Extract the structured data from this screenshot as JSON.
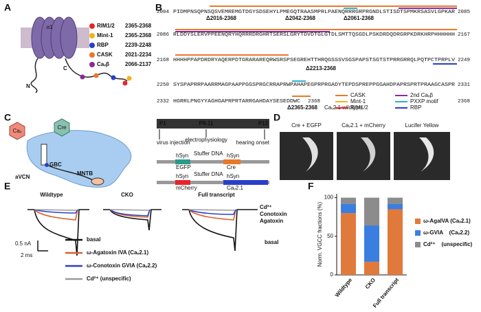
{
  "figure": {
    "A": {
      "label": "A",
      "alpha": "α1",
      "n": "N",
      "c": "C",
      "legend": [
        {
          "name": "RIM1/2",
          "range": "2365-2368",
          "color": "#e8242a"
        },
        {
          "name": "Mint-1",
          "range": "2365-2368",
          "color": "#f2b21c"
        },
        {
          "name": "RBP",
          "range": "2239-2248",
          "color": "#2a3fc8"
        },
        {
          "name": "CASK",
          "range": "2021-2234",
          "color": "#e8792a"
        },
        {
          "name": "Caᵥβ",
          "range": "2066-2137",
          "color": "#8a2a9a"
        }
      ]
    },
    "B": {
      "label": "B",
      "rows": [
        {
          "start": "2004",
          "seq": "PIDMPNSQPNSQSVEMREMGTDGYSDSEHYLPMEGQTRAASMPRLPAENQRRRGRPRGNDLSTISDTSPMKRSASVLGPKAR",
          "end": "2085"
        },
        {
          "start": "2086",
          "seq": "RLDDYSLERVPPEENQRYHQRRRDRGHRTSERSLGRYTDVDTGLGTDLSMTTQSGDLPSKDRDQDRGRPKDRKHRPHHHHHH",
          "end": "2167"
        },
        {
          "start": "2168",
          "seq": "HHHHPPAPDRDRYAQERPDTGRARAREQRWSRSPSEGREHTTHRQGSSSVSGSPAPSTSGTSTPRRGRRQLPQTPCTPRPLV",
          "end": "2249"
        },
        {
          "start": "2250",
          "seq": "SYSPAPRRPAARRMAGPAAPPGGSPRGCRRAPRWPAHAPEGPRPRGADYTEPDSPREPPGGAHDPAPRSPRTPRAAGCASPR",
          "end": "2331"
        },
        {
          "start": "2332",
          "seq": "HGRRLPNGYYAGHGAPRPRTARRGAHDAYSESEDDWC",
          "end": "2368"
        }
      ],
      "deletions": [
        "Δ2016-2368",
        "Δ2042-2368",
        "Δ2061-2368",
        "Δ2213-2368",
        "Δ2365-2368"
      ],
      "wt_end": "2368",
      "wildtype": "Caᵥ2.1 wildtype",
      "legend": [
        {
          "name": "CASK",
          "color": "#e8792a"
        },
        {
          "name": "Mint-1",
          "color": "#f2b21c"
        },
        {
          "name": "RIM1/2",
          "color": "#e8242a"
        },
        {
          "name": "2nd Caᵥβ",
          "color": "#8a2a9a"
        },
        {
          "name": "PXXP motif",
          "color": "#2ab0c8"
        },
        {
          "name": "RBP",
          "color": "#2a3fc8"
        }
      ]
    },
    "C": {
      "label": "C",
      "cav": "Caᵥ",
      "cre": "Cre",
      "gbc": "GBC",
      "avcn": "aVCN",
      "mntb": "MNTB",
      "timeline": [
        "P1",
        "P9-11",
        "P12"
      ],
      "events": [
        "virus injection",
        "electrophysiology",
        "hearing onset"
      ],
      "construct1": {
        "promoter1": "hSyn",
        "stuffer": "Stuffer DNA",
        "promoter2": "hSyn",
        "reporter": "EGFP",
        "gene": "Cre"
      },
      "construct2": {
        "promoter1": "hSyn",
        "stuffer": "Stuffer DNA",
        "promoter2": "hSyn",
        "reporter": "mCherry",
        "gene": "Caᵥ2.1"
      }
    },
    "D": {
      "label": "D",
      "images": [
        "Cre + EGFP",
        "Caᵥ2.1 + mCherry",
        "Lucifer  Yellow"
      ]
    },
    "E": {
      "label": "E",
      "titles": [
        "Wildtype",
        "CKO",
        "Full transcript"
      ],
      "trace_labels": [
        "Cd²⁺",
        "Conotoxin",
        "Agatoxin",
        "basal"
      ],
      "scale_y": "0.5 nA",
      "scale_x": "2 ms",
      "legend": [
        {
          "name": "basal",
          "color": "#111111"
        },
        {
          "name": "ω-Agatoxin IVA (Caᵥ2.1)",
          "color": "#d8602a"
        },
        {
          "name": "ω-Conotoxin GVIA (Caᵥ2.2)",
          "color": "#2a3fc8"
        },
        {
          "name": "Cd²⁺ (unspecific)",
          "color": "#999999"
        }
      ]
    }
  },
  "chart_data": {
    "type": "bar",
    "stacked": true,
    "label": "F",
    "ylabel": "Norm. VGCC fractions (%)",
    "categories": [
      "Wildtype",
      "CKO",
      "Full transcript"
    ],
    "series": [
      {
        "name": "ω-AgaIVA (Caᵥ2.1)",
        "color": "#e07a3c",
        "values": [
          80,
          17,
          85
        ]
      },
      {
        "name": "ω-GVIA    (Caᵥ2.2)",
        "color": "#3a7ee0",
        "values": [
          12,
          47,
          7
        ]
      },
      {
        "name": "Cd²⁺    (unspecific)",
        "color": "#8c8c8c",
        "values": [
          8,
          36,
          8
        ]
      }
    ],
    "ylim": [
      0,
      105
    ],
    "yticks": [
      0,
      50,
      100
    ]
  }
}
